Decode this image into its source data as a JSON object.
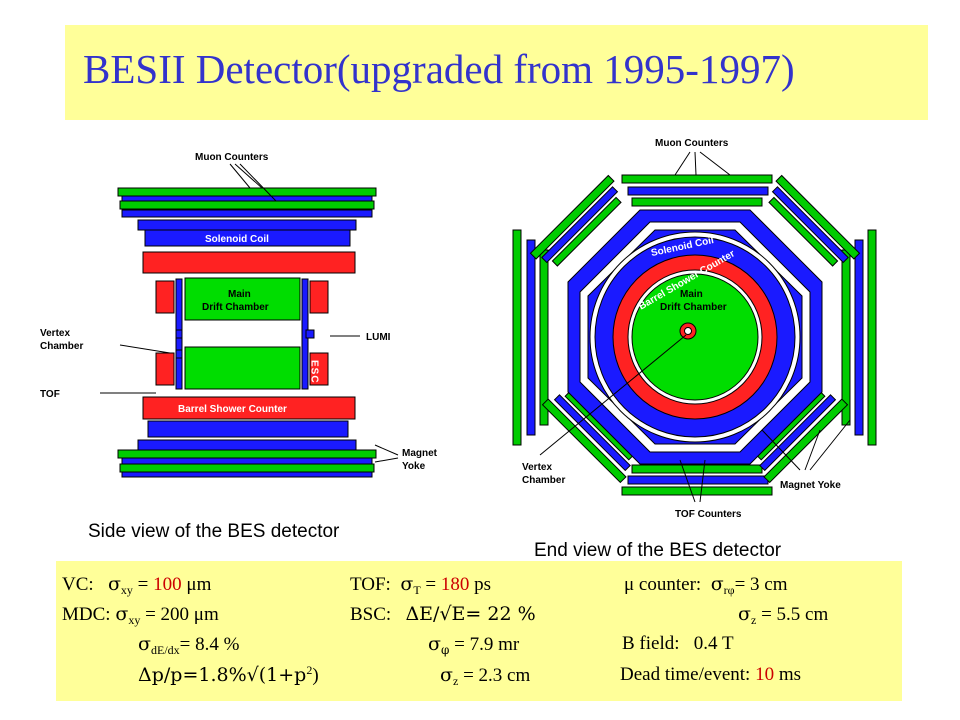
{
  "slide": {
    "title": "BESII Detector(upgraded from 1995-1997)"
  },
  "side_view": {
    "caption": "Side view of the BES detector",
    "labels": {
      "muon_counters": "Muon Counters",
      "solenoid_coil": "Solenoid Coil",
      "main": "Main",
      "drift_chamber": "Drift Chamber",
      "vertex": "Vertex",
      "chamber": "Chamber",
      "lumi": "LUMI",
      "esc": "ESC",
      "tof": "TOF",
      "barrel_shower_counter": "Barrel Shower Counter",
      "magnet": "Magnet",
      "yoke": "Yoke"
    }
  },
  "end_view": {
    "caption": "End view of the BES detector",
    "labels": {
      "muon_counters": "Muon Counters",
      "solenoid_coil": "Solenoid Coil",
      "barrel_shower_counter": "Barrel Shower Counter",
      "main": "Main",
      "drift_chamber": "Drift Chamber",
      "vertex": "Vertex",
      "chamber": "Chamber",
      "magnet_yoke": "Magnet Yoke",
      "tof_counters": "TOF Counters"
    }
  },
  "specs": {
    "vc": {
      "label": "VC:",
      "sigma": "σ",
      "sub": "xy",
      "eq": " = ",
      "value": "100",
      "unit": " μm"
    },
    "tof": {
      "label": "TOF:",
      "sigma": "σ",
      "sub": "T",
      "eq": " = ",
      "value": "180",
      "unit": " ps"
    },
    "mu": {
      "prefix": "μ counter:",
      "sigma": "σ",
      "sub": "rφ",
      "eq": "= 3 cm"
    },
    "mdc": {
      "label": "MDC:",
      "sigma": "σ",
      "sub": "xy",
      "eq": " = ",
      "value": "200",
      "unit": " μm"
    },
    "bsc": {
      "label": "BSC:",
      "text": "ΔE/√E= 22 %"
    },
    "mu_z": {
      "sigma": "σ",
      "sub": "z",
      "eq": " = 5.5 cm"
    },
    "dedx": {
      "sigma": "σ",
      "sub": "dE/dx",
      "eq": "= 8.4 %"
    },
    "phi": {
      "sigma": "σ",
      "sub": "φ",
      "eq": " = 7.9 mr"
    },
    "bfield": {
      "label": "B field:",
      "value": "0.4 T"
    },
    "dp": {
      "text": "Δp/p=1.8%√(1+p",
      "sup": "2",
      "close": ")"
    },
    "tof_z": {
      "sigma": "σ",
      "sub": "z",
      "eq": " = 2.3 cm"
    },
    "dead": {
      "label": "Dead time/event: ",
      "value": "10",
      "unit": " ms"
    }
  },
  "colors": {
    "title": "#3333cc",
    "panel_background": "#ffff99",
    "muon_and_tof": "#00cc00",
    "blue_layers": "#1a1aff",
    "shower_counter": "#ff2222",
    "drift_chamber": "#00dd00",
    "highlight_value": "#cc0000"
  }
}
